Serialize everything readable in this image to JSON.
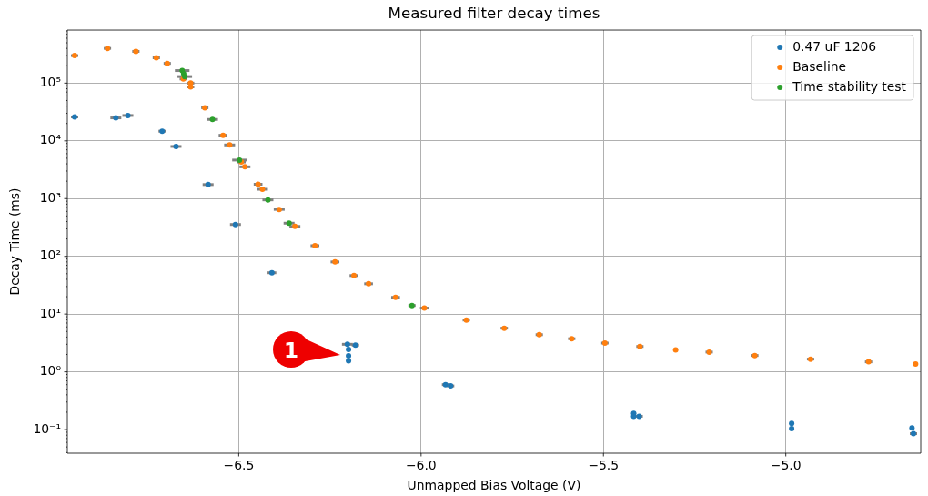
{
  "chart_data": {
    "type": "scatter",
    "title": "Measured filter decay times",
    "xlabel": "Unmapped Bias Voltage (V)",
    "ylabel": "Decay Time (ms)",
    "xlim": [
      -6.97,
      -4.63
    ],
    "xticks": [
      {
        "value": -6.5,
        "label": "−6.5"
      },
      {
        "value": -6.0,
        "label": "−6.0"
      },
      {
        "value": -5.5,
        "label": "−5.5"
      },
      {
        "value": -5.0,
        "label": "−5.0"
      }
    ],
    "ylim": [
      0.039,
      830000
    ],
    "log": true,
    "yticks": [
      {
        "value": 0.04,
        "label": null
      },
      {
        "value": 0.05,
        "label": null
      },
      {
        "value": 0.06,
        "label": null
      },
      {
        "value": 0.07,
        "label": null
      },
      {
        "value": 0.08,
        "label": null
      },
      {
        "value": 0.09,
        "label": null
      },
      {
        "value": 0.1,
        "label": "10⁻¹"
      },
      {
        "value": 0.2,
        "label": null
      },
      {
        "value": 0.3,
        "label": null
      },
      {
        "value": 0.4,
        "label": null
      },
      {
        "value": 0.5,
        "label": null
      },
      {
        "value": 0.6,
        "label": null
      },
      {
        "value": 0.7,
        "label": null
      },
      {
        "value": 0.8,
        "label": null
      },
      {
        "value": 0.9,
        "label": null
      },
      {
        "value": 1,
        "label": "10⁰"
      },
      {
        "value": 2,
        "label": null
      },
      {
        "value": 3,
        "label": null
      },
      {
        "value": 4,
        "label": null
      },
      {
        "value": 5,
        "label": null
      },
      {
        "value": 6,
        "label": null
      },
      {
        "value": 7,
        "label": null
      },
      {
        "value": 8,
        "label": null
      },
      {
        "value": 9,
        "label": null
      },
      {
        "value": 10,
        "label": "10¹"
      },
      {
        "value": 20,
        "label": null
      },
      {
        "value": 30,
        "label": null
      },
      {
        "value": 40,
        "label": null
      },
      {
        "value": 50,
        "label": null
      },
      {
        "value": 60,
        "label": null
      },
      {
        "value": 70,
        "label": null
      },
      {
        "value": 80,
        "label": null
      },
      {
        "value": 90,
        "label": null
      },
      {
        "value": 100,
        "label": "10²"
      },
      {
        "value": 200,
        "label": null
      },
      {
        "value": 300,
        "label": null
      },
      {
        "value": 400,
        "label": null
      },
      {
        "value": 500,
        "label": null
      },
      {
        "value": 600,
        "label": null
      },
      {
        "value": 700,
        "label": null
      },
      {
        "value": 800,
        "label": null
      },
      {
        "value": 900,
        "label": null
      },
      {
        "value": 1000,
        "label": "10³"
      },
      {
        "value": 2000,
        "label": null
      },
      {
        "value": 3000,
        "label": null
      },
      {
        "value": 4000,
        "label": null
      },
      {
        "value": 5000,
        "label": null
      },
      {
        "value": 6000,
        "label": null
      },
      {
        "value": 7000,
        "label": null
      },
      {
        "value": 8000,
        "label": null
      },
      {
        "value": 9000,
        "label": null
      },
      {
        "value": 10000,
        "label": "10⁴"
      },
      {
        "value": 20000,
        "label": null
      },
      {
        "value": 30000,
        "label": null
      },
      {
        "value": 40000,
        "label": null
      },
      {
        "value": 50000,
        "label": null
      },
      {
        "value": 60000,
        "label": null
      },
      {
        "value": 70000,
        "label": null
      },
      {
        "value": 80000,
        "label": null
      },
      {
        "value": 90000,
        "label": null
      },
      {
        "value": 100000,
        "label": "10⁵"
      },
      {
        "value": 200000,
        "label": null
      },
      {
        "value": 300000,
        "label": null
      },
      {
        "value": 400000,
        "label": null
      },
      {
        "value": 500000,
        "label": null
      },
      {
        "value": 600000,
        "label": null
      },
      {
        "value": 700000,
        "label": null
      },
      {
        "value": 800000,
        "label": null
      }
    ],
    "grid": true,
    "legend": "top right",
    "marker": "circle",
    "annotations": [
      {
        "text": "1",
        "x": -6.199,
        "y": 1.9
      }
    ],
    "series": [
      {
        "name": "0.47 uF 1206",
        "color": "#1f77b4",
        "x": [
          -6.95,
          -6.837,
          -6.804,
          -6.71,
          -6.672,
          -6.584,
          -6.509,
          -6.409,
          -6.202,
          -6.18,
          -6.199,
          -6.199,
          -6.199,
          -5.933,
          -5.919,
          -5.417,
          -5.417,
          -5.402,
          -4.984,
          -4.984,
          -4.654,
          -4.65
        ],
        "values": [
          26000,
          25000,
          27500,
          14700,
          8000,
          1750,
          356,
          52,
          3.0,
          2.9,
          2.45,
          1.9,
          1.55,
          0.6,
          0.57,
          0.19,
          0.17,
          0.17,
          0.128,
          0.104,
          0.107,
          0.085
        ],
        "xerrors": [
          0.01,
          0.015,
          0.015,
          0.01,
          0.015,
          0.015,
          0.015,
          0.012,
          0.015,
          0.01,
          null,
          null,
          null,
          0.01,
          0.01,
          null,
          null,
          0.01,
          null,
          null,
          null,
          0.01
        ]
      },
      {
        "name": "Baseline",
        "color": "#ff7f0e",
        "x": [
          -6.95,
          -6.86,
          -6.782,
          -6.726,
          -6.696,
          -6.652,
          -6.632,
          -6.632,
          -6.593,
          -6.543,
          -6.525,
          -6.493,
          -6.483,
          -6.447,
          -6.435,
          -6.389,
          -6.346,
          -6.291,
          -6.236,
          -6.184,
          -6.144,
          -6.07,
          -5.991,
          -5.876,
          -5.772,
          -5.676,
          -5.587,
          -5.496,
          -5.4,
          -5.302,
          -5.21,
          -5.085,
          -4.932,
          -4.773,
          -4.644
        ],
        "values": [
          300000,
          400000,
          355000,
          275000,
          220000,
          118000,
          100000,
          86000,
          37500,
          12500,
          8500,
          4300,
          3550,
          1770,
          1450,
          650,
          330,
          153,
          80,
          46.5,
          33.5,
          19.5,
          12.7,
          7.9,
          5.7,
          4.4,
          3.75,
          3.15,
          2.75,
          2.4,
          2.2,
          1.92,
          1.66,
          1.49,
          1.37
        ],
        "xerrors": [
          0.01,
          0.01,
          0.01,
          0.01,
          0.01,
          0.01,
          0.01,
          0.01,
          0.01,
          0.012,
          0.015,
          0.012,
          0.015,
          0.012,
          0.015,
          0.015,
          0.015,
          0.012,
          0.012,
          0.012,
          0.012,
          0.012,
          0.012,
          0.01,
          0.01,
          0.01,
          0.01,
          0.01,
          0.01,
          null,
          0.01,
          0.01,
          0.01,
          0.01,
          null
        ]
      },
      {
        "name": "Time stability test",
        "color": "#2ca02c",
        "x": [
          -6.655,
          -6.651,
          -6.648,
          -6.572,
          -6.498,
          -6.42,
          -6.362,
          -6.025
        ],
        "values": [
          165000,
          145000,
          130000,
          23500,
          4650,
          950,
          375,
          14.1
        ],
        "xerrors": [
          0.02,
          null,
          0.02,
          0.015,
          0.02,
          0.015,
          0.015,
          0.01
        ]
      }
    ]
  }
}
